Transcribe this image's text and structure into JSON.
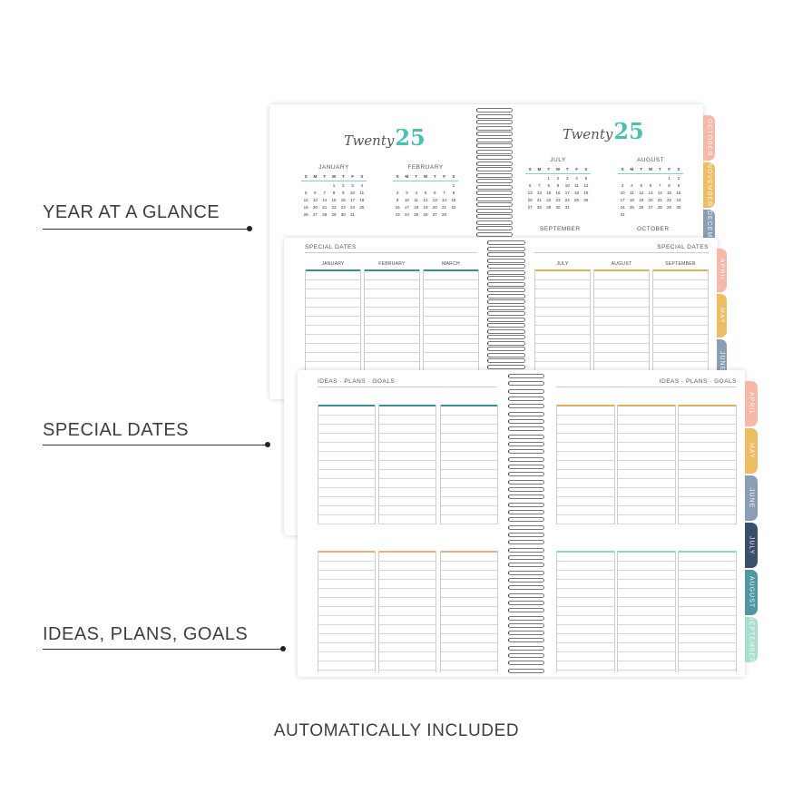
{
  "labels": {
    "year_at_a_glance": "YEAR AT A GLANCE",
    "special_dates": "SPECIAL DATES",
    "ideas": "IDEAS, PLANS, GOALS"
  },
  "footer": "AUTOMATICALLY INCLUDED",
  "colors": {
    "teal": "#3a8f92",
    "gold": "#e0b24f",
    "salmon": "#f3a98c",
    "mint": "#8fd8c8",
    "accent": "#4dbfb0"
  },
  "year_pages": {
    "title_script": "Twenty",
    "title_number": "25",
    "weekday_headers": [
      "S",
      "M",
      "T",
      "W",
      "T",
      "F",
      "S"
    ],
    "months": [
      {
        "name": "JANUARY",
        "first_weekday": 3,
        "days": 31
      },
      {
        "name": "FEBRUARY",
        "first_weekday": 6,
        "days": 28
      },
      {
        "name": "JULY",
        "first_weekday": 2,
        "days": 31
      },
      {
        "name": "AUGUST",
        "first_weekday": 5,
        "days": 31
      }
    ],
    "next_months": [
      "SEPTEMBER",
      "OCTOBER"
    ],
    "tabs": [
      {
        "label": "OCTOBER",
        "color": "#f6b8a8"
      },
      {
        "label": "NOVEMBER",
        "color": "#ecbd62"
      },
      {
        "label": "DECEMBER",
        "color": "#8a9fb5"
      }
    ]
  },
  "special_dates": {
    "heading": "SPECIAL DATES",
    "left_columns": [
      "JANUARY",
      "FEBRUARY",
      "MARCH"
    ],
    "right_columns": [
      "JULY",
      "AUGUST",
      "SEPTEMBER"
    ],
    "tabs": [
      {
        "label": "APRIL",
        "color": "#f6b8a8"
      },
      {
        "label": "MAY",
        "color": "#ecbd62"
      },
      {
        "label": "JUNE",
        "color": "#8a9fb5"
      }
    ]
  },
  "ideas": {
    "heading": "IDEAS · PLANS · GOALS",
    "tabs": [
      {
        "label": "APRIL",
        "color": "#f6b8a8"
      },
      {
        "label": "MAY",
        "color": "#ecbd62"
      },
      {
        "label": "JUNE",
        "color": "#8a9fb5"
      },
      {
        "label": "JULY",
        "color": "#3b4f6b"
      },
      {
        "label": "AUGUST",
        "color": "#4d98a3"
      },
      {
        "label": "SEPTEMBER",
        "color": "#a8dfcf"
      }
    ]
  }
}
